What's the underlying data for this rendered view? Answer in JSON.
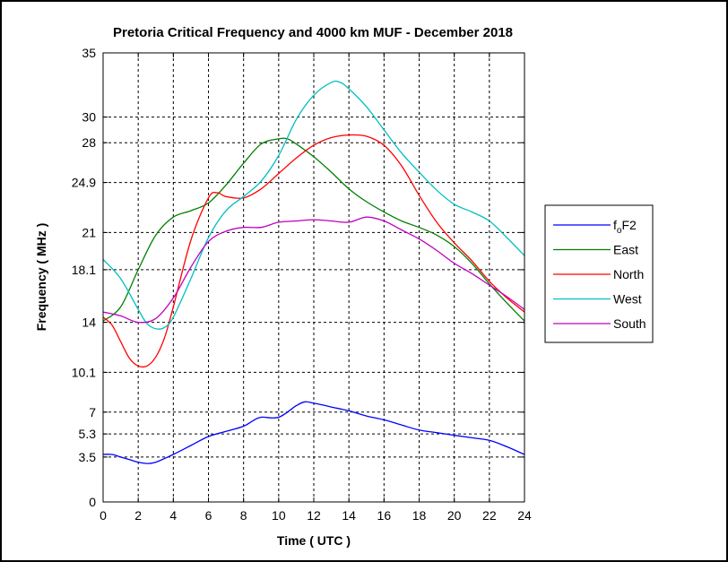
{
  "chart_data": {
    "type": "line",
    "title": "Pretoria Critical Frequency and 4000 km MUF - December 2018",
    "xlabel": "Time ( UTC )",
    "ylabel": "Frequency ( MHz )",
    "xlim": [
      0,
      24
    ],
    "ylim": [
      0,
      35
    ],
    "xticks": [
      0,
      2,
      4,
      6,
      8,
      10,
      12,
      14,
      16,
      18,
      20,
      22,
      24
    ],
    "xtick_labels": [
      "0",
      "2",
      "4",
      "6",
      "8",
      "10",
      "12",
      "14",
      "16",
      "18",
      "20",
      "22",
      "24"
    ],
    "yticks": [
      0,
      3.5,
      5.3,
      7,
      10.1,
      14,
      18.1,
      21,
      24.9,
      28,
      30,
      35
    ],
    "ytick_labels": [
      "0",
      "3.5",
      "5.3",
      "7",
      "10.1",
      "14",
      "18.1",
      "21",
      "24.9",
      "28",
      "30",
      "35"
    ],
    "grid": true,
    "legend_position": "right",
    "series": [
      {
        "name": "foF2",
        "name_main": "f",
        "name_sub": "o",
        "name_tail": "F2",
        "color": "#0000ff",
        "x": [
          0,
          0.5,
          1,
          1.5,
          2,
          2.5,
          3,
          4,
          5,
          6,
          7,
          8,
          8.5,
          9,
          10,
          11,
          11.5,
          12,
          13,
          14,
          15,
          16,
          17,
          18,
          19,
          20,
          21,
          22,
          23,
          24
        ],
        "y": [
          3.7,
          3.7,
          3.5,
          3.3,
          3.1,
          3.0,
          3.1,
          3.7,
          4.4,
          5.1,
          5.5,
          5.9,
          6.3,
          6.6,
          6.6,
          7.5,
          7.8,
          7.7,
          7.4,
          7.1,
          6.7,
          6.4,
          6.0,
          5.6,
          5.4,
          5.2,
          5.0,
          4.8,
          4.3,
          3.7
        ]
      },
      {
        "name": "East",
        "color": "#008000",
        "x": [
          0,
          1,
          2,
          3,
          4,
          5,
          6,
          7,
          8,
          9,
          10,
          10.5,
          11,
          12,
          13,
          14,
          15,
          16,
          17,
          18,
          19,
          20,
          21,
          22,
          23,
          24
        ],
        "y": [
          14.1,
          15.2,
          18.1,
          20.8,
          22.2,
          22.7,
          23.3,
          24.7,
          26.4,
          27.9,
          28.3,
          28.3,
          27.9,
          26.9,
          25.7,
          24.4,
          23.4,
          22.6,
          21.9,
          21.4,
          20.8,
          19.9,
          18.6,
          17.0,
          15.5,
          14.1
        ]
      },
      {
        "name": "North",
        "color": "#ff0000",
        "x": [
          0,
          0.5,
          1,
          1.5,
          2,
          2.5,
          3,
          3.5,
          4,
          5,
          6,
          6.5,
          7,
          8,
          9,
          10,
          11,
          12,
          13,
          14,
          15,
          16,
          17,
          18,
          19,
          20,
          21,
          22,
          23,
          24
        ],
        "y": [
          14.4,
          13.8,
          12.5,
          11.2,
          10.6,
          10.6,
          11.3,
          12.8,
          15.2,
          20.4,
          23.7,
          24.1,
          23.8,
          23.7,
          24.4,
          25.6,
          26.8,
          27.8,
          28.4,
          28.6,
          28.5,
          27.8,
          26.2,
          23.9,
          21.8,
          20.2,
          18.8,
          17.2,
          15.9,
          14.8
        ]
      },
      {
        "name": "West",
        "color": "#00bfbf",
        "x": [
          0,
          1,
          2,
          2.5,
          3,
          3.5,
          4,
          5,
          6,
          7,
          8,
          9,
          10,
          11,
          12,
          13,
          13.5,
          14,
          15,
          16,
          17,
          18,
          19,
          20,
          21,
          22,
          23,
          24
        ],
        "y": [
          18.9,
          17.4,
          15.0,
          13.9,
          13.5,
          13.6,
          14.4,
          17.4,
          20.6,
          22.7,
          23.8,
          25.0,
          27.0,
          29.8,
          31.7,
          32.7,
          32.7,
          32.2,
          30.8,
          29.0,
          27.2,
          25.7,
          24.3,
          23.2,
          22.6,
          21.9,
          20.6,
          19.2
        ]
      },
      {
        "name": "South",
        "color": "#bf00bf",
        "x": [
          0,
          1,
          2,
          3,
          4,
          5,
          6,
          7,
          8,
          9,
          10,
          11,
          12,
          13,
          14,
          15,
          16,
          17,
          18,
          19,
          20,
          21,
          22,
          23,
          24
        ],
        "y": [
          14.8,
          14.5,
          14.0,
          14.3,
          15.9,
          18.3,
          20.3,
          21.1,
          21.4,
          21.4,
          21.8,
          21.9,
          22.0,
          21.9,
          21.8,
          22.2,
          21.9,
          21.2,
          20.5,
          19.6,
          18.6,
          17.8,
          16.9,
          16.0,
          15.0
        ]
      }
    ]
  }
}
